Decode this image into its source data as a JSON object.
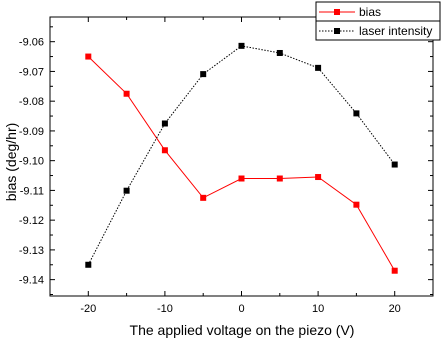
{
  "chart_data": {
    "type": "line",
    "xlabel": "The applied voltage on the piezo (V)",
    "ylabel": "bias (deg/hr)",
    "x": [
      -20,
      -15,
      -10,
      -5,
      0,
      5,
      10,
      15,
      20
    ],
    "xticks": [
      -20,
      -10,
      0,
      10,
      20
    ],
    "xlim": [
      -25,
      25
    ],
    "yticks": [
      -9.06,
      -9.07,
      -9.08,
      -9.09,
      -9.1,
      -9.11,
      -9.12,
      -9.13,
      -9.14
    ],
    "ytick_labels": [
      "-9.06",
      "-9.07",
      "-9.08",
      "-9.09",
      "-9.10",
      "-9.11",
      "-9.12",
      "-9.13",
      "-9.14"
    ],
    "ylim": [
      -9.1455,
      -9.0517
    ],
    "grid": false,
    "legend_position": "top-right",
    "series": [
      {
        "name": "bias",
        "color": "#ff0000",
        "marker_color": "#ff0000",
        "line_style": "solid",
        "values": [
          -9.065,
          -9.0775,
          -9.0965,
          -9.1125,
          -9.106,
          -9.106,
          -9.1055,
          -9.1148,
          -9.137
        ]
      },
      {
        "name": "laser intensity",
        "color": "#000000",
        "marker_color": "#000000",
        "line_style": "dotted",
        "values": [
          -9.135,
          -9.1101,
          -9.0875,
          -9.0709,
          -9.0614,
          -9.0638,
          -9.0688,
          -9.0841,
          -9.1013
        ]
      }
    ]
  }
}
